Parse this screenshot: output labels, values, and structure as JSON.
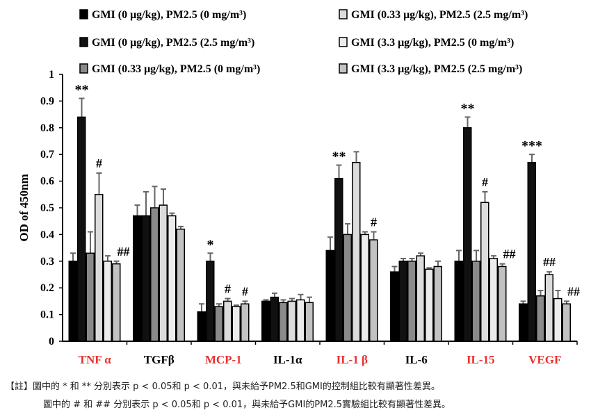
{
  "chart_data": {
    "type": "bar",
    "ylabel": "OD of 450nm",
    "ylim": [
      0,
      1
    ],
    "yticks": [
      "0",
      "0.1",
      "0.2",
      "0.3",
      "0.4",
      "0.5",
      "0.6",
      "0.7",
      "0.8",
      "0.9",
      "1"
    ],
    "grid": false,
    "legend_placement": "top",
    "categories": [
      "TNF α",
      "TGFβ",
      "MCP-1",
      "IL-1α",
      "IL-1 β",
      "IL-6",
      "IL-15",
      "VEGF"
    ],
    "category_colors": [
      "#e8312f",
      "#000000",
      "#e8312f",
      "#000000",
      "#e8312f",
      "#000000",
      "#e8312f",
      "#e8312f"
    ],
    "series": [
      {
        "name": "GMI (0 μg/kg), PM2.5 (0 mg/m³)",
        "color": "#000000",
        "values": [
          0.3,
          0.47,
          0.11,
          0.15,
          0.34,
          0.26,
          0.3,
          0.14
        ],
        "errors": [
          0.03,
          0.04,
          0.03,
          0.005,
          0.05,
          0.02,
          0.04,
          0.01
        ]
      },
      {
        "name": "GMI (0 μg/kg), PM2.5 (2.5 mg/m³)",
        "color": "#111111",
        "values": [
          0.84,
          0.47,
          0.3,
          0.165,
          0.61,
          0.3,
          0.8,
          0.67
        ],
        "errors": [
          0.07,
          0.09,
          0.03,
          0.015,
          0.05,
          0.01,
          0.04,
          0.03
        ]
      },
      {
        "name": "GMI (0.33 μg/kg), PM2.5 (0 mg/m³)",
        "color": "#8a8a8a",
        "values": [
          0.33,
          0.5,
          0.13,
          0.145,
          0.4,
          0.3,
          0.3,
          0.17
        ],
        "errors": [
          0.08,
          0.08,
          0.01,
          0.01,
          0.04,
          0.01,
          0.04,
          0.02
        ]
      },
      {
        "name": "GMI (0.33 μg/kg), PM2.5 (2.5 mg/m³)",
        "color": "#dcdcdc",
        "values": [
          0.55,
          0.51,
          0.15,
          0.15,
          0.67,
          0.32,
          0.52,
          0.25
        ],
        "errors": [
          0.08,
          0.06,
          0.01,
          0.01,
          0.04,
          0.01,
          0.04,
          0.01
        ]
      },
      {
        "name": "GMI (3.3 μg/kg), PM2.5 (0 mg/m³)",
        "color": "#ececec",
        "values": [
          0.3,
          0.47,
          0.13,
          0.155,
          0.4,
          0.27,
          0.31,
          0.16
        ],
        "errors": [
          0.02,
          0.01,
          0.005,
          0.02,
          0.01,
          0.005,
          0.01,
          0.03
        ]
      },
      {
        "name": "GMI (3.3 μg/kg), PM2.5 (2.5 mg/m³)",
        "color": "#c2c2c2",
        "values": [
          0.29,
          0.42,
          0.14,
          0.145,
          0.38,
          0.28,
          0.28,
          0.14
        ],
        "errors": [
          0.01,
          0.01,
          0.01,
          0.02,
          0.03,
          0.02,
          0.01,
          0.01
        ]
      }
    ],
    "annotations": [
      {
        "category": 0,
        "series": 1,
        "text": "**"
      },
      {
        "category": 0,
        "series": 3,
        "text": "#"
      },
      {
        "category": 0,
        "series": 5,
        "text": "##"
      },
      {
        "category": 2,
        "series": 1,
        "text": "*"
      },
      {
        "category": 2,
        "series": 3,
        "text": "#"
      },
      {
        "category": 2,
        "series": 5,
        "text": "#"
      },
      {
        "category": 4,
        "series": 1,
        "text": "**"
      },
      {
        "category": 4,
        "series": 5,
        "text": "#"
      },
      {
        "category": 6,
        "series": 1,
        "text": "**"
      },
      {
        "category": 6,
        "series": 3,
        "text": "#"
      },
      {
        "category": 6,
        "series": 5,
        "text": "##"
      },
      {
        "category": 7,
        "series": 1,
        "text": "***"
      },
      {
        "category": 7,
        "series": 3,
        "text": "##"
      },
      {
        "category": 7,
        "series": 5,
        "text": "##"
      }
    ]
  },
  "notes": {
    "line1": "【註】圖中的 * 和 ** 分別表示 p < 0.05和 p < 0.01，與未給予PM2.5和GMI的控制組比較有顯著性差異。",
    "line2": "圖中的 # 和 ## 分別表示 p < 0.05和 p < 0.01，與未給予GMI的PM2.5實驗組比較有顯著性差異。"
  }
}
